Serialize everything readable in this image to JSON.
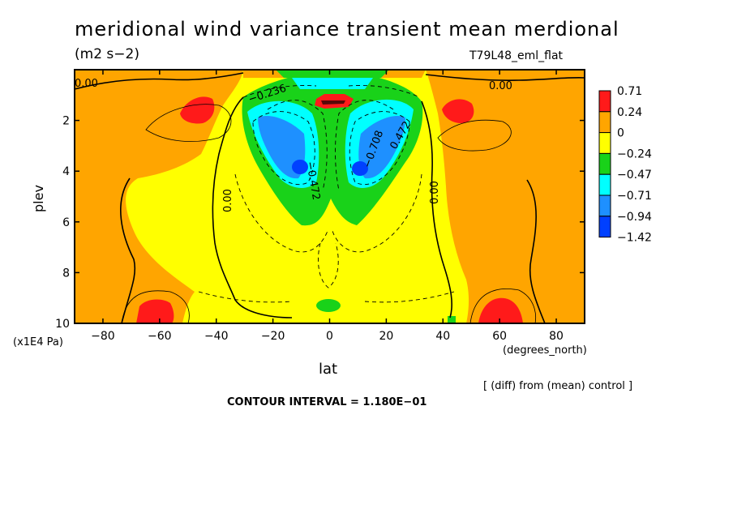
{
  "title": "meridional wind variance transient mean merdional",
  "subtitle": "(m2 s−2)",
  "run_label": "T79L48_eml_flat",
  "footer": {
    "diff_note": "[ (diff) from (mean) control ]",
    "contour_interval": "CONTOUR INTERVAL = 1.180E−01"
  },
  "chart_data": {
    "type": "heatmap",
    "title": "meridional wind variance transient mean merdional",
    "xlabel": "lat",
    "x_units": "(degrees_north)",
    "ylabel": "plev",
    "y_scale_note": "(x1E4 Pa)",
    "xlim": [
      -90,
      90
    ],
    "ylim": [
      10,
      0
    ],
    "x_ticks": [
      -80,
      -60,
      -40,
      -20,
      0,
      20,
      40,
      60,
      80
    ],
    "x_tick_labels": [
      "−80",
      "−60",
      "−40",
      "−20",
      "0",
      "20",
      "40",
      "60",
      "80"
    ],
    "y_ticks": [
      2,
      4,
      6,
      8,
      10
    ],
    "y_tick_labels": [
      "2",
      "4",
      "6",
      "8",
      "10"
    ],
    "colorbar": {
      "levels": [
        "0.71",
        "0.24",
        "0",
        "−0.24",
        "−0.47",
        "−0.71",
        "−0.94",
        "−1.42"
      ],
      "colors": [
        "#ff1a1a",
        "#ffa500",
        "#ffff00",
        "#19d219",
        "#00ffff",
        "#1e90ff",
        "#0040ff"
      ]
    },
    "contour_labels": [
      "0.00",
      "0.00",
      "−0.236",
      "−0.472",
      "−0.708",
      "0.472",
      "0.00",
      "0.00"
    ],
    "features": [
      {
        "lat": -10,
        "plev": 4,
        "value_range": "−1.42 to −0.94"
      },
      {
        "lat": 10,
        "plev": 4,
        "value_range": "−1.42 to −0.94"
      },
      {
        "lat": 0,
        "plev": 1.3,
        "value_range": "> 0.71"
      },
      {
        "lat": -50,
        "plev": 1.5,
        "value_range": "> 0.71"
      },
      {
        "lat": 50,
        "plev": 1.5,
        "value_range": "> 0.71"
      },
      {
        "lat": -60,
        "plev": 9.5,
        "value_range": "> 0.71"
      },
      {
        "lat": 62,
        "plev": 9.5,
        "value_range": "> 0.71"
      }
    ],
    "grid": false
  }
}
